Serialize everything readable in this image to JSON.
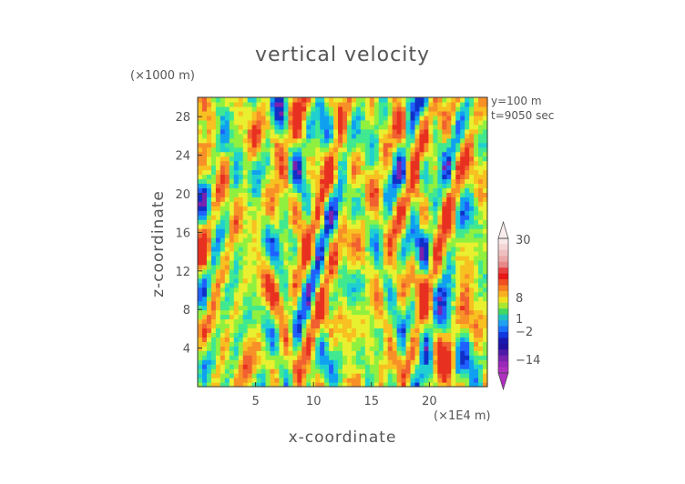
{
  "chart_data": {
    "type": "heatmap",
    "title": "vertical velocity",
    "xlabel": "x-coordinate",
    "ylabel": "z-coordinate",
    "x_unit": "(×1E4 m)",
    "y_unit": "(×1000 m)",
    "x_ticks": [
      5,
      10,
      15,
      20
    ],
    "y_ticks": [
      4,
      8,
      12,
      16,
      20,
      24,
      28
    ],
    "xlim": [
      0,
      25
    ],
    "ylim": [
      0,
      30
    ],
    "annotations": [
      "y=100  m",
      "t=9050  sec"
    ],
    "colorbar": {
      "labels": [
        "30",
        "8",
        "1",
        "−2",
        "−14"
      ],
      "levels": [
        -14,
        -2,
        1,
        8,
        30
      ],
      "extend": "both"
    }
  }
}
